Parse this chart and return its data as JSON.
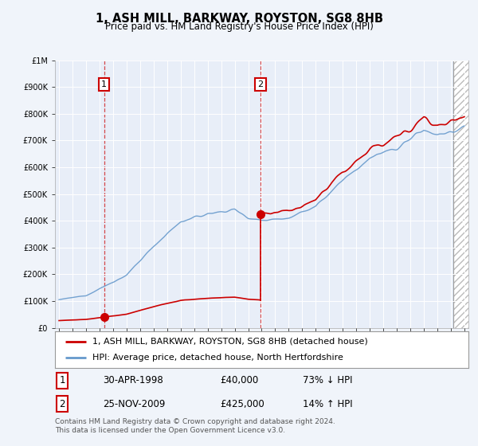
{
  "title": "1, ASH MILL, BARKWAY, ROYSTON, SG8 8HB",
  "subtitle": "Price paid vs. HM Land Registry's House Price Index (HPI)",
  "legend_line1": "1, ASH MILL, BARKWAY, ROYSTON, SG8 8HB (detached house)",
  "legend_line2": "HPI: Average price, detached house, North Hertfordshire",
  "transaction1_date": 1998.33,
  "transaction1_price": 40000,
  "transaction1_label": "30-APR-1998",
  "transaction1_price_str": "£40,000",
  "transaction1_hpi": "73% ↓ HPI",
  "transaction2_date": 2009.92,
  "transaction2_price": 425000,
  "transaction2_label": "25-NOV-2009",
  "transaction2_price_str": "£425,000",
  "transaction2_hpi": "14% ↑ HPI",
  "hatch_start": 2024.17,
  "ylim_max": 1000000,
  "ylim_min": 0,
  "xlim_min": 1994.7,
  "xlim_max": 2025.3,
  "background_color": "#f0f4fa",
  "plot_bg_color": "#e8eef8",
  "red_color": "#cc0000",
  "blue_color": "#6699cc",
  "gray_color": "#888888",
  "copyright_text": "Contains HM Land Registry data © Crown copyright and database right 2024.\nThis data is licensed under the Open Government Licence v3.0."
}
